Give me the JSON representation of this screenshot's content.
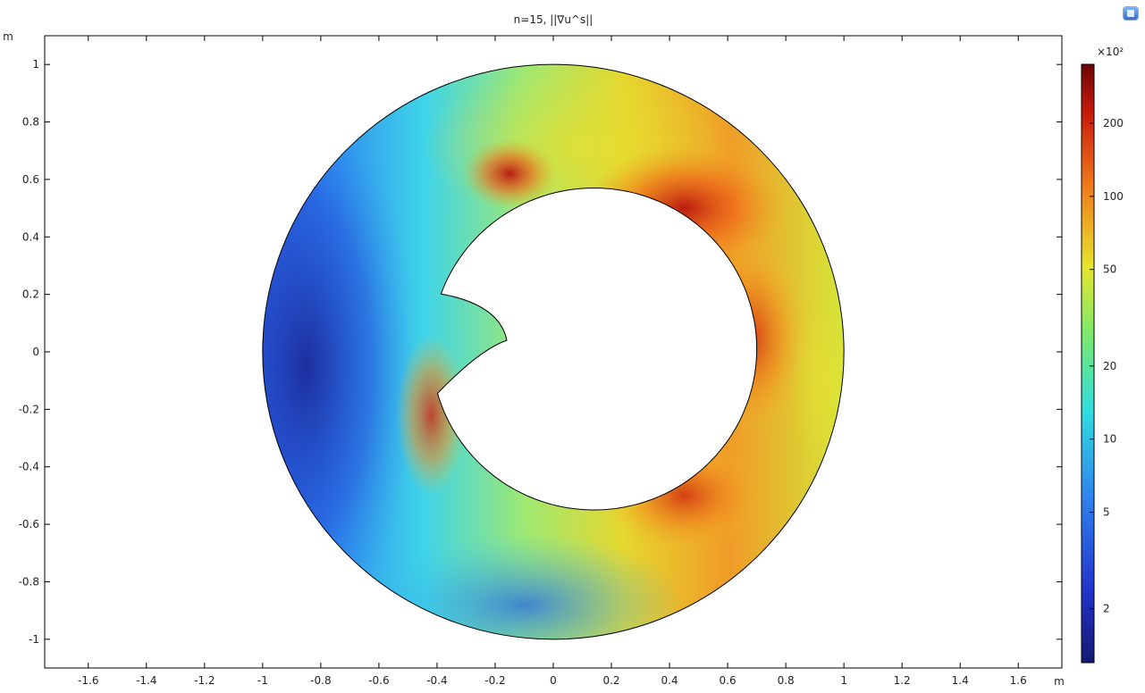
{
  "chart_data": {
    "type": "heatmap",
    "title": "n=15, ||∇u^s||",
    "x_unit": "m",
    "y_unit": "m",
    "xlim": [
      -1.75,
      1.75
    ],
    "ylim": [
      -1.1,
      1.1
    ],
    "x_ticks": [
      -1.6,
      -1.4,
      -1.2,
      -1,
      -0.8,
      -0.6,
      -0.4,
      -0.2,
      0,
      0.2,
      0.4,
      0.6,
      0.8,
      1,
      1.2,
      1.4,
      1.6
    ],
    "y_ticks": [
      1,
      0.8,
      0.6,
      0.4,
      0.2,
      0,
      -0.2,
      -0.4,
      -0.6,
      -0.8,
      -1
    ],
    "x_tick_labels": [
      "-1.6",
      "-1.4",
      "-1.2",
      "-1",
      "-0.8",
      "-0.6",
      "-0.4",
      "-0.2",
      "0",
      "0.2",
      "0.4",
      "0.6",
      "0.8",
      "1",
      "1.2",
      "1.4",
      "1.6"
    ],
    "y_tick_labels": [
      "1",
      "0.8",
      "0.6",
      "0.4",
      "0.2",
      "0",
      "-0.2",
      "-0.4",
      "-0.6",
      "-0.8",
      "-1"
    ],
    "domain": {
      "outer_radius": 1.0,
      "inner_center": [
        0.14,
        0.01
      ],
      "inner_radius": 0.56,
      "notch_tip": [
        -0.16,
        0.04
      ]
    },
    "colorbar": {
      "multiplier_label": "×10²",
      "scale": "log",
      "range": [
        1.2,
        350
      ],
      "ticks": [
        2,
        5,
        10,
        20,
        50,
        100,
        200
      ],
      "tick_labels": [
        "2",
        "5",
        "10",
        "20",
        "50",
        "100",
        "200"
      ],
      "colormap": "rainbow (dark blue → cyan → yellow → dark red)"
    },
    "grid": false,
    "legend": "colorbar right"
  },
  "colors": {
    "low": "#1a1f8c",
    "mid_low": "#3aa0f0",
    "mid": "#33e6d9",
    "mid_high": "#e6e62e",
    "high": "#e65a0e",
    "max": "#7a0a0a"
  },
  "icons": {
    "app_badge": "app-logo-icon"
  }
}
